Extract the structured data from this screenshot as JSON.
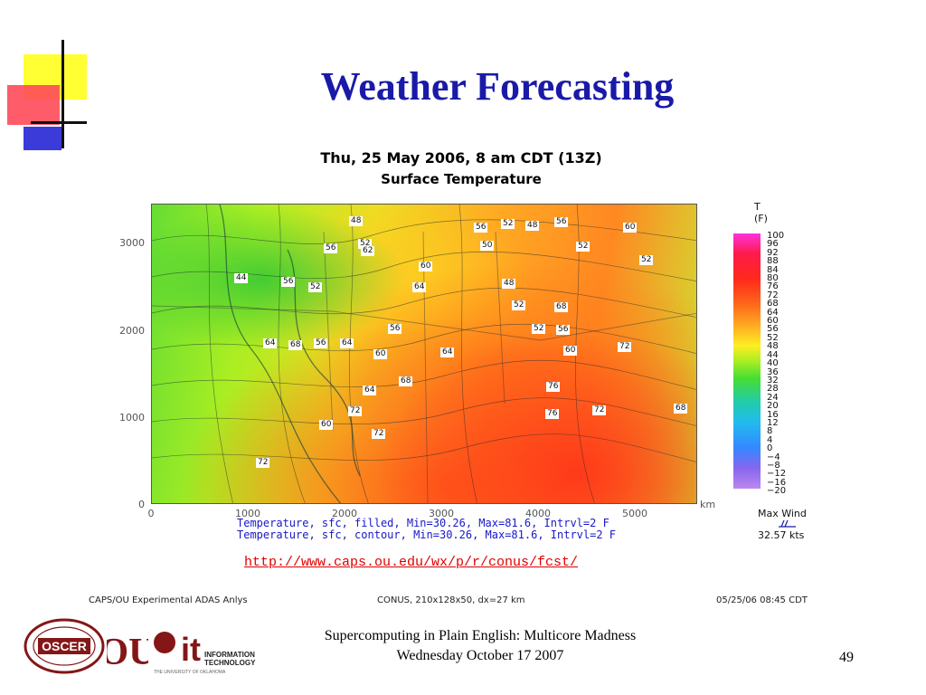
{
  "slide": {
    "title": "Weather Forecasting",
    "map_title_line1": "Thu, 25 May 2006, 8 am CDT (13Z)",
    "map_title_line2": "Surface Temperature",
    "y_ticks": [
      "3000",
      "2000",
      "1000",
      "0"
    ],
    "x_ticks": [
      "0",
      "1000",
      "2000",
      "3000",
      "4000",
      "5000"
    ],
    "x_unit": "km",
    "captions": [
      "Temperature, sfc, filled, Min=30.26, Max=81.6, Intrvl=2 F",
      "Temperature, sfc, contour, Min=30.26, Max=81.6, Intrvl=2 F"
    ],
    "legend": {
      "title_line1": "T",
      "title_line2": "(F)",
      "ticks": [
        "100",
        "96",
        "92",
        "88",
        "84",
        "80",
        "76",
        "72",
        "68",
        "64",
        "60",
        "56",
        "52",
        "48",
        "44",
        "40",
        "36",
        "32",
        "28",
        "24",
        "20",
        "16",
        "12",
        "8",
        "4",
        "0",
        "−4",
        "−8",
        "−12",
        "−16",
        "−20"
      ]
    },
    "wind": {
      "label": "Max Wind",
      "value": "32.57 kts"
    },
    "contour_labels": [
      "48",
      "52",
      "56",
      "62",
      "56",
      "52",
      "50",
      "60",
      "48",
      "56",
      "60",
      "52",
      "52",
      "44",
      "56",
      "52",
      "64",
      "48",
      "56",
      "52",
      "56",
      "52",
      "68",
      "64",
      "60",
      "72",
      "64",
      "68",
      "56",
      "64",
      "60",
      "68",
      "64",
      "72",
      "76",
      "76",
      "72",
      "68",
      "72",
      "60",
      "72"
    ],
    "url": "http://www.caps.ou.edu/wx/p/r/conus/fcst/",
    "footer_left": "CAPS/OU Experimental ADAS Anlys",
    "footer_center": "CONUS, 210x128x50, dx=27 km",
    "footer_right": "05/25/06 08:45 CDT",
    "course_line1": "Supercomputing in Plain English: Multicore Madness",
    "course_line2": "Wednesday October 17 2007",
    "page_number": "49"
  },
  "logos": {
    "oscer": "OSCER",
    "ou": "OU",
    "it_mark": "it",
    "it_line1": "INFORMATION",
    "it_line2": "TECHNOLOGY",
    "it_sub": "THE UNIVERSITY OF OKLAHOMA"
  },
  "colors": {
    "title": "#1a1aa8",
    "url": "#e00000",
    "ou_crimson": "#841617"
  }
}
